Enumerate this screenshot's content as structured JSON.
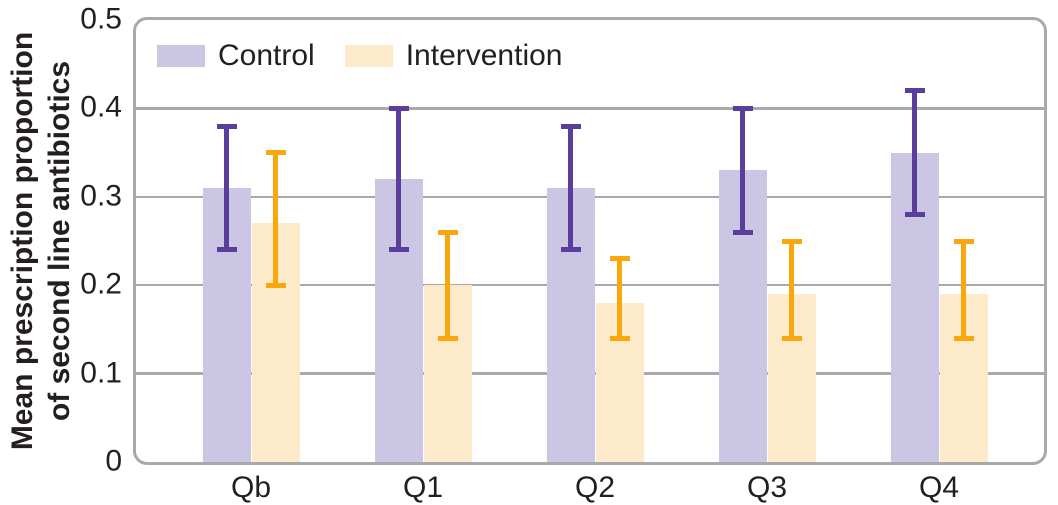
{
  "figure": {
    "ylabel_line1": "Mean prescription proportion",
    "ylabel_line2": "of second line antibiotics"
  },
  "colors": {
    "frame_and_grid": "#a7a9ac",
    "text": "#231f20"
  },
  "chart_data": {
    "type": "bar",
    "title": "",
    "xlabel": "",
    "ylabel": "Mean prescription proportion of second line antibiotics",
    "categories": [
      "Qb",
      "Q1",
      "Q2",
      "Q3",
      "Q4"
    ],
    "series": [
      {
        "name": "Control",
        "color": "#cbc6e4",
        "error_color": "#5b3d9c",
        "values": [
          0.31,
          0.32,
          0.31,
          0.33,
          0.35
        ],
        "ci_low": [
          0.24,
          0.24,
          0.24,
          0.26,
          0.28
        ],
        "ci_high": [
          0.38,
          0.4,
          0.38,
          0.4,
          0.42
        ]
      },
      {
        "name": "Intervention",
        "color": "#fdeaca",
        "error_color": "#f8a70d",
        "values": [
          0.27,
          0.2,
          0.18,
          0.19,
          0.19
        ],
        "ci_low": [
          0.2,
          0.14,
          0.14,
          0.14,
          0.14
        ],
        "ci_high": [
          0.35,
          0.26,
          0.23,
          0.25,
          0.25
        ]
      }
    ],
    "ylim": [
      0,
      0.5
    ],
    "yticks": [
      0,
      0.1,
      0.2,
      0.3,
      0.4,
      0.5
    ],
    "ytick_labels": [
      "0",
      "0.1",
      "0.2",
      "0.3",
      "0.4",
      "0.5"
    ],
    "grid": true,
    "legend_position": "top-left"
  }
}
